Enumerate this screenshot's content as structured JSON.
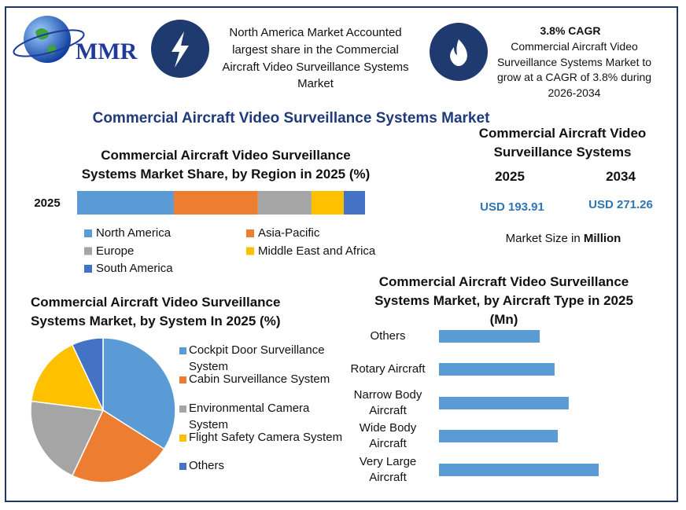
{
  "header": {
    "logo": "MMR",
    "left_text": "North America Market Accounted largest share in the Commercial Aircraft Video Surveillance Systems Market",
    "right_title": "3.8% CAGR",
    "right_text": "Commercial Aircraft Video Surveillance Systems Market to grow at a CAGR of 3.8% during 2026-2034"
  },
  "title": "Commercial Aircraft Video Surveillance Systems Market",
  "market_size": {
    "title": "Commercial Aircraft Video Surveillance Systems",
    "years": [
      "2025",
      "2034"
    ],
    "values": [
      "USD 193.91",
      "USD 271.26"
    ],
    "note": "Market Size in",
    "unit": "Million"
  },
  "chart_data": [
    {
      "type": "stacked-bar",
      "title": "Commercial Aircraft Video Surveillance Systems Market Share, by Region in 2025 (%)",
      "categories": [
        "2025"
      ],
      "series": [
        {
          "name": "North America",
          "color": "#5b9bd5",
          "values": [
            33.6
          ]
        },
        {
          "name": "Asia-Pacific",
          "color": "#ed7d31",
          "values": [
            29.2
          ]
        },
        {
          "name": "Europe",
          "color": "#a5a5a5",
          "values": [
            18.6
          ]
        },
        {
          "name": "Middle East and Africa",
          "color": "#ffc000",
          "values": [
            11.2
          ]
        },
        {
          "name": "South America",
          "color": "#4472c4",
          "values": [
            7.4
          ]
        }
      ]
    },
    {
      "type": "pie",
      "title": "Commercial Aircraft Video Surveillance Systems Market, by System In 2025 (%)",
      "categories": [
        "Cockpit Door Surveillance System",
        "Cabin Surveillance System",
        "Environmental Camera System",
        "Flight Safety Camera System",
        "Others"
      ],
      "values": [
        34,
        23,
        20,
        16,
        7
      ],
      "colors": [
        "#5b9bd5",
        "#ed7d31",
        "#a5a5a5",
        "#ffc000",
        "#4472c4"
      ]
    },
    {
      "type": "hbar",
      "title": "Commercial Aircraft Video Surveillance Systems Market, by Aircraft Type in 2025 (Mn)",
      "categories": [
        "Others",
        "Rotary Aircraft",
        "Narrow Body Aircraft",
        "Wide Body Aircraft",
        "Very Large Aircraft"
      ],
      "values": [
        31.3,
        35.9,
        40.3,
        36.9,
        49.6
      ],
      "color": "#5b9bd5"
    }
  ]
}
